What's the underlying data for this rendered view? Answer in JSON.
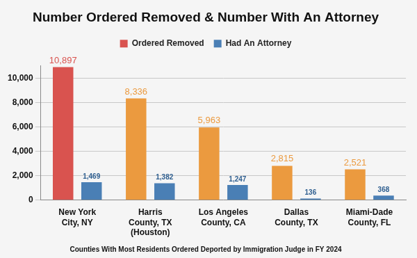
{
  "chart_data": {
    "type": "bar",
    "title": "Number Ordered Removed & Number With An Attorney",
    "subtitle": "Counties With Most Residents Ordered Deported by Immigration Judge in FY 2024",
    "categories": [
      "New York City, NY",
      "Harris County, TX (Houston)",
      "Los Angeles County, CA",
      "Dallas County, TX",
      "Miami-Dade County, FL"
    ],
    "series": [
      {
        "name": "Ordered Removed",
        "colors": [
          "#d9534f",
          "#eb9a3f",
          "#eb9a3f",
          "#eb9a3f",
          "#eb9a3f"
        ],
        "values": [
          10897,
          8336,
          5963,
          2815,
          2521
        ],
        "value_labels": [
          "10,897",
          "8,336",
          "5,963",
          "2,815",
          "2,521"
        ]
      },
      {
        "name": "Had An Attorney",
        "color": "#4a7fb5",
        "values": [
          1469,
          1382,
          1247,
          136,
          368
        ],
        "value_labels": [
          "1,469",
          "1,382",
          "1,247",
          "136",
          "368"
        ]
      }
    ],
    "ylim": [
      0,
      11000
    ],
    "yticks": [
      0,
      {
        "value": 2000,
        "label": "2,000"
      },
      {
        "value": 4000,
        "label": "4,000"
      },
      {
        "value": 6000,
        "label": "6,000"
      },
      {
        "value": 8000,
        "label": "8,000"
      },
      {
        "value": 10000,
        "label": "10,000"
      }
    ],
    "grid": true,
    "legend": "top",
    "data_labels": true
  }
}
